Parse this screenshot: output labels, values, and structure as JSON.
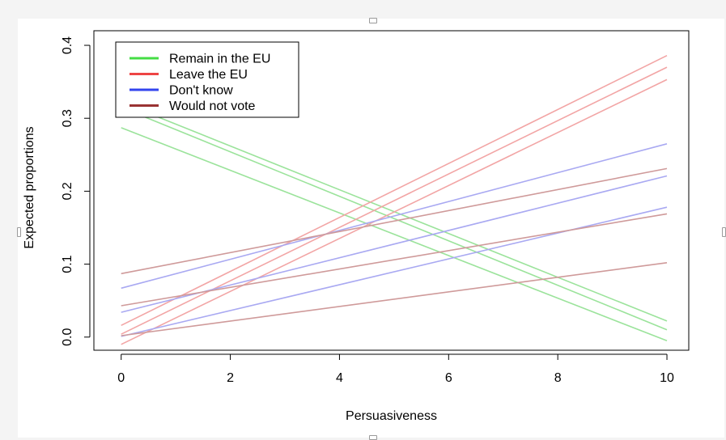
{
  "chart_data": {
    "type": "line",
    "title": "",
    "xlabel": "Persuasiveness",
    "ylabel": "Expected proportions",
    "xlim": [
      -0.5,
      10.4
    ],
    "ylim": [
      -0.018,
      0.42
    ],
    "xticks": [
      "0",
      "2",
      "4",
      "6",
      "8",
      "10"
    ],
    "yticks": [
      "0.0",
      "0.1",
      "0.2",
      "0.3",
      "0.4"
    ],
    "xtick_values": [
      0,
      2,
      4,
      6,
      8,
      10
    ],
    "ytick_values": [
      0.0,
      0.1,
      0.2,
      0.3,
      0.4
    ],
    "grid": false,
    "legend_position": "top-left",
    "legend": [
      {
        "label": "Remain in the EU",
        "color": "#44dd44"
      },
      {
        "label": "Leave the EU",
        "color": "#ee4444"
      },
      {
        "label": "Don't know",
        "color": "#3344ee"
      },
      {
        "label": "Would not vote",
        "color": "#993333"
      }
    ],
    "series": [
      {
        "group": "Remain in the EU",
        "color": "#9be39b",
        "x": [
          0,
          10
        ],
        "y": [
          0.315,
          0.01
        ]
      },
      {
        "group": "Remain in the EU",
        "color": "#9be39b",
        "x": [
          0,
          10
        ],
        "y": [
          0.322,
          0.022
        ]
      },
      {
        "group": "Remain in the EU",
        "color": "#9be39b",
        "x": [
          0,
          10
        ],
        "y": [
          0.287,
          -0.005
        ]
      },
      {
        "group": "Leave the EU",
        "color": "#f2a5a5",
        "x": [
          0,
          10
        ],
        "y": [
          -0.01,
          0.353
        ]
      },
      {
        "group": "Leave the EU",
        "color": "#f2a5a5",
        "x": [
          0,
          10
        ],
        "y": [
          0.004,
          0.37
        ]
      },
      {
        "group": "Leave the EU",
        "color": "#f2a5a5",
        "x": [
          0,
          10
        ],
        "y": [
          0.016,
          0.386
        ]
      },
      {
        "group": "Don't know",
        "color": "#a9a9f2",
        "x": [
          0,
          10
        ],
        "y": [
          0.067,
          0.265
        ]
      },
      {
        "group": "Don't know",
        "color": "#a9a9f2",
        "x": [
          0,
          10
        ],
        "y": [
          0.034,
          0.221
        ]
      },
      {
        "group": "Don't know",
        "color": "#a9a9f2",
        "x": [
          0,
          10
        ],
        "y": [
          0.001,
          0.178
        ]
      },
      {
        "group": "Would not vote",
        "color": "#cf9a9a",
        "x": [
          0,
          10
        ],
        "y": [
          0.087,
          0.231
        ]
      },
      {
        "group": "Would not vote",
        "color": "#cf9a9a",
        "x": [
          0,
          10
        ],
        "y": [
          0.043,
          0.169
        ]
      },
      {
        "group": "Would not vote",
        "color": "#cf9a9a",
        "x": [
          0,
          10
        ],
        "y": [
          0.002,
          0.102
        ]
      }
    ]
  }
}
